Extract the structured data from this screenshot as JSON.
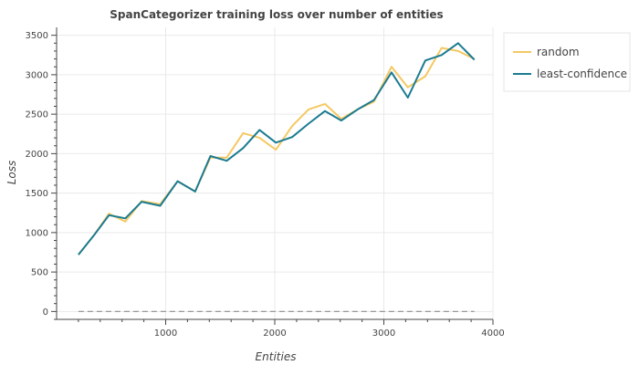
{
  "chart_data": {
    "type": "line",
    "title": "SpanCategorizer training loss over number of entities",
    "xlabel": "Entities",
    "ylabel": "Loss",
    "xlim": [
      0,
      4000
    ],
    "ylim": [
      -100,
      3600
    ],
    "xticks": [
      1000,
      2000,
      3000,
      4000
    ],
    "yticks": [
      0,
      500,
      1000,
      1500,
      2000,
      2500,
      3000,
      3500
    ],
    "grid": true,
    "legend_position": "top-right outside",
    "baseline_y": 0,
    "series": [
      {
        "name": "random",
        "color": "#f5c862",
        "x": [
          200,
          340,
          480,
          630,
          780,
          950,
          1110,
          1270,
          1410,
          1560,
          1710,
          1860,
          2010,
          2160,
          2310,
          2460,
          2610,
          2760,
          2910,
          3070,
          3220,
          3380,
          3530,
          3680,
          3830
        ],
        "y": [
          720,
          960,
          1240,
          1140,
          1400,
          1360,
          1650,
          1520,
          1950,
          1950,
          2260,
          2200,
          2050,
          2350,
          2560,
          2630,
          2440,
          2560,
          2660,
          3100,
          2840,
          2980,
          3340,
          3300,
          3200
        ]
      },
      {
        "name": "least-confidence",
        "color": "#1b7b91",
        "x": [
          200,
          340,
          480,
          630,
          780,
          950,
          1110,
          1270,
          1410,
          1560,
          1710,
          1860,
          2010,
          2160,
          2310,
          2460,
          2610,
          2760,
          2910,
          3070,
          3220,
          3380,
          3530,
          3680,
          3830
        ],
        "y": [
          720,
          960,
          1220,
          1180,
          1390,
          1340,
          1650,
          1520,
          1970,
          1910,
          2070,
          2300,
          2140,
          2210,
          2380,
          2540,
          2420,
          2560,
          2680,
          3030,
          2710,
          3180,
          3250,
          3400,
          3190
        ]
      }
    ]
  }
}
